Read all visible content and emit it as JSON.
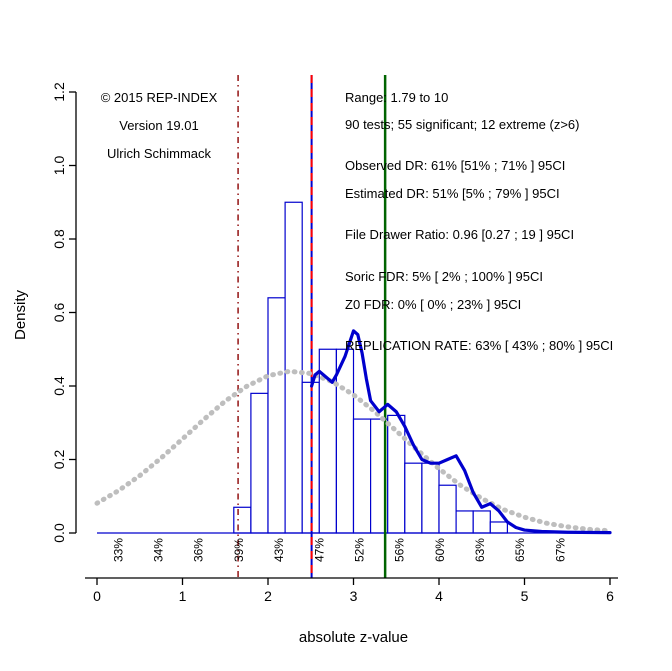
{
  "annotations": {
    "left": [
      "© 2015 REP-INDEX",
      "Version 19.01",
      "Ulrich Schimmack"
    ],
    "right": [
      "Range: 1.79 to 10",
      "90 tests; 55 significant; 12 extreme (z>6)",
      "Observed DR: 61% [51% ; 71% ] 95CI",
      "Estimated DR: 51% [5% ; 79% ] 95CI",
      "File Drawer Ratio: 0.96 [0.27 ; 19 ] 95CI",
      "Soric FDR: 5% [ 2% ; 100% ] 95CI",
      "Z0 FDR: 0% [ 0% ; 23% ] 95CI",
      "REPLICATION RATE: 63% [ 43% ; 80% ] 95CI"
    ]
  },
  "chart_data": {
    "type": "bar",
    "title": "",
    "xlabel": "absolute z-value",
    "ylabel": "Density",
    "xlim": [
      0,
      6
    ],
    "ylim": [
      0,
      1.2
    ],
    "x_ticks": [
      0,
      1,
      2,
      3,
      4,
      5,
      6
    ],
    "y_ticks": [
      "0.0",
      "0.2",
      "0.4",
      "0.6",
      "0.8",
      "1.0",
      "1.2"
    ],
    "grid": false,
    "legend": "none",
    "histogram": {
      "bin_start": 1.6,
      "bin_width": 0.2,
      "densities": [
        0.07,
        0.38,
        0.64,
        0.9,
        0.41,
        0.5,
        0.5,
        0.31,
        0.31,
        0.32,
        0.19,
        0.19,
        0.13,
        0.06,
        0.06,
        0.03
      ],
      "stroke": "#0000CD",
      "fill": "#FFFFFF"
    },
    "baseline": {
      "y": 0,
      "color": "#0000CD"
    },
    "series": [
      {
        "name": "expected-density-grey",
        "color": "#BEBEBE",
        "style": "dotted",
        "width": 5,
        "x": [
          0,
          0.25,
          0.5,
          0.75,
          1,
          1.25,
          1.5,
          1.75,
          2,
          2.25,
          2.5,
          2.75,
          3,
          3.25,
          3.5,
          3.75,
          4,
          4.25,
          4.5,
          4.75,
          5,
          5.25,
          5.5,
          5.75,
          6
        ],
        "y": [
          0.081,
          0.115,
          0.156,
          0.204,
          0.256,
          0.309,
          0.359,
          0.399,
          0.428,
          0.44,
          0.434,
          0.412,
          0.376,
          0.33,
          0.278,
          0.225,
          0.175,
          0.13,
          0.094,
          0.064,
          0.043,
          0.027,
          0.017,
          0.01,
          0.006
        ]
      },
      {
        "name": "observed-density-blue",
        "color": "#0000CD",
        "style": "solid",
        "width": 3.2,
        "x": [
          2.51,
          2.55,
          2.6,
          2.7,
          2.75,
          2.8,
          2.9,
          3.0,
          3.05,
          3.1,
          3.15,
          3.2,
          3.3,
          3.35,
          3.4,
          3.5,
          3.6,
          3.7,
          3.8,
          3.9,
          4.0,
          4.1,
          4.2,
          4.3,
          4.4,
          4.5,
          4.6,
          4.7,
          4.8,
          4.9,
          5.0,
          5.2,
          5.5,
          6.0
        ],
        "y": [
          0.4,
          0.43,
          0.44,
          0.42,
          0.41,
          0.43,
          0.48,
          0.55,
          0.54,
          0.49,
          0.42,
          0.36,
          0.33,
          0.34,
          0.35,
          0.33,
          0.29,
          0.24,
          0.2,
          0.19,
          0.19,
          0.2,
          0.21,
          0.17,
          0.11,
          0.07,
          0.08,
          0.06,
          0.03,
          0.015,
          0.008,
          0.004,
          0.002,
          0.001
        ]
      }
    ],
    "vlines": [
      {
        "name": "criterion-line-darkred",
        "x": 1.65,
        "color": "#8B0000",
        "style": "dashdot",
        "width": 1.4
      },
      {
        "name": "selection-line-blue",
        "x": 2.51,
        "color": "#0000CD",
        "style": "solid",
        "width": 2
      },
      {
        "name": "selection-line-red-dashed",
        "x": 2.51,
        "color": "#FF0000",
        "style": "dashed",
        "width": 2
      },
      {
        "name": "mean-power-line-green",
        "x": 3.37,
        "color": "#006400",
        "style": "solid",
        "width": 2.5
      }
    ],
    "percent_labels": {
      "color": "#000000",
      "labels": [
        "33%",
        "34%",
        "36%",
        "39%",
        "43%",
        "47%",
        "52%",
        "56%",
        "60%",
        "63%",
        "65%",
        "67%"
      ],
      "x": [
        0.25,
        0.72,
        1.19,
        1.66,
        2.13,
        2.6,
        3.07,
        3.54,
        4.01,
        4.48,
        4.95,
        5.42
      ]
    }
  }
}
